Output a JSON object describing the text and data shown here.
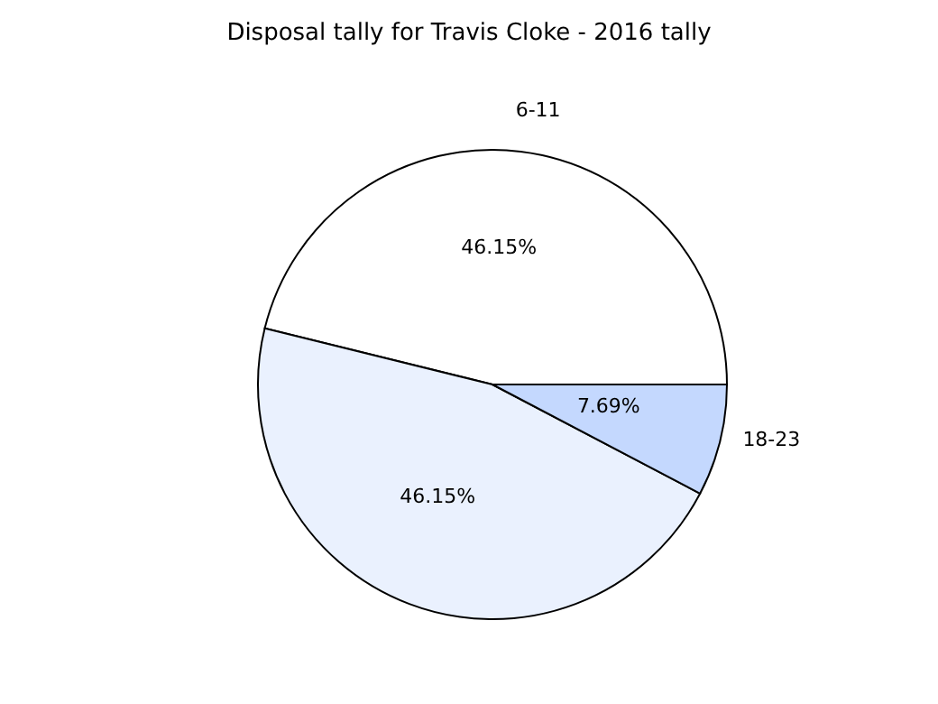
{
  "chart_data": {
    "type": "pie",
    "title": "Disposal tally for Travis Cloke - 2016 tally",
    "categories": [
      "6-11",
      null,
      "18-23"
    ],
    "values": [
      46.15,
      46.15,
      7.69
    ],
    "value_labels": [
      "46.15%",
      "46.15%",
      "7.69%"
    ],
    "colors": [
      "#ffffff",
      "#eaf1fe",
      "#c4d8fe"
    ]
  }
}
